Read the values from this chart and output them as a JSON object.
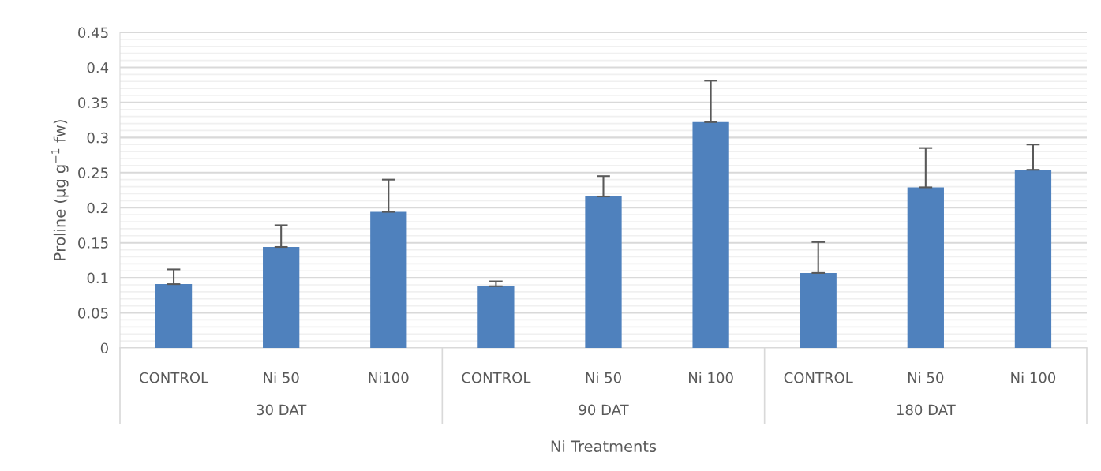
{
  "chart_data": {
    "type": "bar",
    "xlabel": "Ni Treatments",
    "ylabel": "Proline (µg g$^{−1}$ fw)",
    "categories": [
      "CONTROL",
      "Ni 50",
      "Ni100",
      "CONTROL",
      "Ni 50",
      "Ni 100",
      "CONTROL",
      "Ni 50",
      "Ni 100"
    ],
    "values": [
      0.091,
      0.144,
      0.194,
      0.088,
      0.216,
      0.322,
      0.107,
      0.229,
      0.254
    ],
    "errors": [
      [
        0.091,
        0.112
      ],
      [
        0.144,
        0.175
      ],
      [
        0.194,
        0.24
      ],
      [
        0.088,
        0.095
      ],
      [
        0.216,
        0.245
      ],
      [
        0.322,
        0.381
      ],
      [
        0.107,
        0.151
      ],
      [
        0.229,
        0.285
      ],
      [
        0.254,
        0.29
      ]
    ],
    "color": "#4f81bd",
    "annotations": [
      "30 DAT",
      "90 DAT",
      "180 DAT"
    ],
    "ylim": [
      0,
      0.45
    ],
    "yticks": [
      0,
      {
        "value": 0.01,
        "label": null
      },
      {
        "value": 0.02,
        "label": null
      },
      {
        "value": 0.03,
        "label": null
      },
      {
        "value": 0.04,
        "label": null
      },
      0.05,
      {
        "value": 0.06,
        "label": null
      },
      {
        "value": 0.07,
        "label": null
      },
      {
        "value": 0.08,
        "label": null
      },
      {
        "value": 0.09,
        "label": null
      },
      0.1,
      {
        "value": 0.11,
        "label": null
      },
      {
        "value": 0.12,
        "label": null
      },
      {
        "value": 0.13,
        "label": null
      },
      {
        "value": 0.14,
        "label": null
      },
      0.15,
      {
        "value": 0.16,
        "label": null
      },
      {
        "value": 0.17,
        "label": null
      },
      {
        "value": 0.18,
        "label": null
      },
      {
        "value": 0.19,
        "label": null
      },
      0.2,
      {
        "value": 0.21,
        "label": null
      },
      {
        "value": 0.22,
        "label": null
      },
      {
        "value": 0.23,
        "label": null
      },
      {
        "value": 0.24,
        "label": null
      },
      0.25,
      {
        "value": 0.26,
        "label": null
      },
      {
        "value": 0.27,
        "label": null
      },
      {
        "value": 0.28,
        "label": null
      },
      {
        "value": 0.29,
        "label": null
      },
      0.3,
      {
        "value": 0.31,
        "label": null
      },
      {
        "value": 0.32,
        "label": null
      },
      {
        "value": 0.33,
        "label": null
      },
      {
        "value": 0.34,
        "label": null
      },
      0.35,
      {
        "value": 0.36,
        "label": null
      },
      {
        "value": 0.37,
        "label": null
      },
      {
        "value": 0.38,
        "label": null
      },
      {
        "value": 0.39,
        "label": null
      },
      0.4,
      {
        "value": 0.41,
        "label": null
      },
      {
        "value": 0.42,
        "label": null
      },
      {
        "value": 0.43,
        "label": null
      },
      {
        "value": 0.44,
        "label": null
      },
      0.45
    ],
    "grid": "y"
  }
}
